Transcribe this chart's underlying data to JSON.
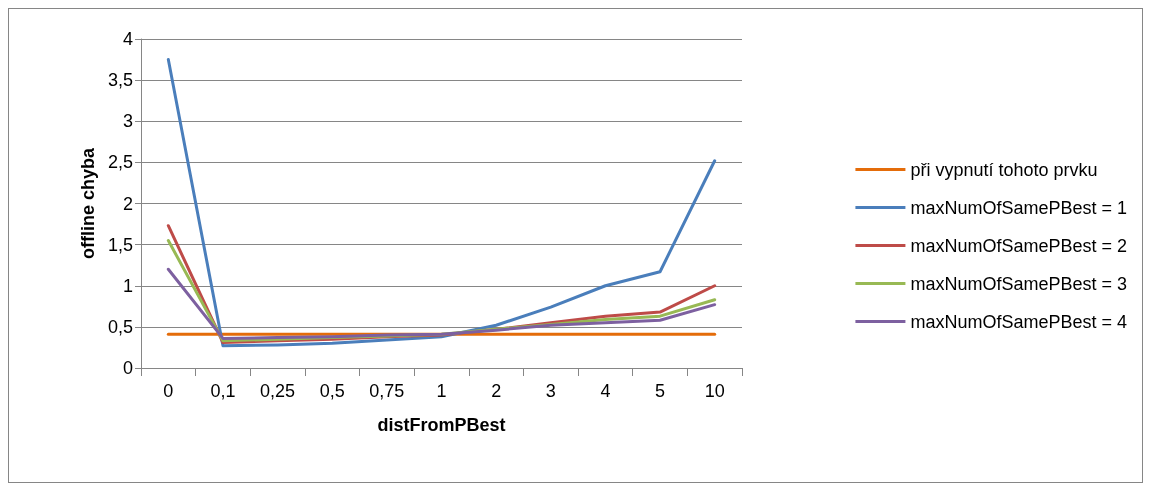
{
  "chart_data": {
    "type": "line",
    "xlabel": "distFromPBest",
    "ylabel": "offline chyba",
    "categories": [
      "0",
      "0,1",
      "0,25",
      "0,5",
      "0,75",
      "1",
      "2",
      "3",
      "4",
      "5",
      "10"
    ],
    "series": [
      {
        "name": "při vypnutí tohoto prvku",
        "color": "#e46c0a",
        "values": [
          0.41,
          0.41,
          0.41,
          0.41,
          0.41,
          0.41,
          0.41,
          0.41,
          0.41,
          0.41,
          0.41
        ]
      },
      {
        "name": "maxNumOfSamePBest = 1",
        "color": "#4a7ebb",
        "values": [
          3.75,
          0.27,
          0.28,
          0.3,
          0.34,
          0.38,
          0.52,
          0.74,
          1.0,
          1.17,
          2.52
        ]
      },
      {
        "name": "maxNumOfSamePBest = 2",
        "color": "#be4b48",
        "values": [
          1.73,
          0.31,
          0.33,
          0.35,
          0.38,
          0.4,
          0.47,
          0.55,
          0.63,
          0.68,
          1.0
        ]
      },
      {
        "name": "maxNumOfSamePBest = 3",
        "color": "#98b954",
        "values": [
          1.55,
          0.33,
          0.35,
          0.37,
          0.39,
          0.41,
          0.47,
          0.53,
          0.59,
          0.63,
          0.83
        ]
      },
      {
        "name": "maxNumOfSamePBest = 4",
        "color": "#7d60a0",
        "values": [
          1.2,
          0.36,
          0.37,
          0.38,
          0.4,
          0.41,
          0.46,
          0.52,
          0.55,
          0.58,
          0.77
        ]
      }
    ],
    "ylim": [
      0,
      4
    ],
    "yticks": [
      {
        "value": 0,
        "label": "0"
      },
      {
        "value": 0.5,
        "label": "0,5"
      },
      {
        "value": 1,
        "label": "1"
      },
      {
        "value": 1.5,
        "label": "1,5"
      },
      {
        "value": 2,
        "label": "2"
      },
      {
        "value": 2.5,
        "label": "2,5"
      },
      {
        "value": 3,
        "label": "3"
      },
      {
        "value": 3.5,
        "label": "3,5"
      },
      {
        "value": 4,
        "label": "4"
      }
    ],
    "grid": "y",
    "legend": "right",
    "marker": "none",
    "line_style": "solid"
  }
}
